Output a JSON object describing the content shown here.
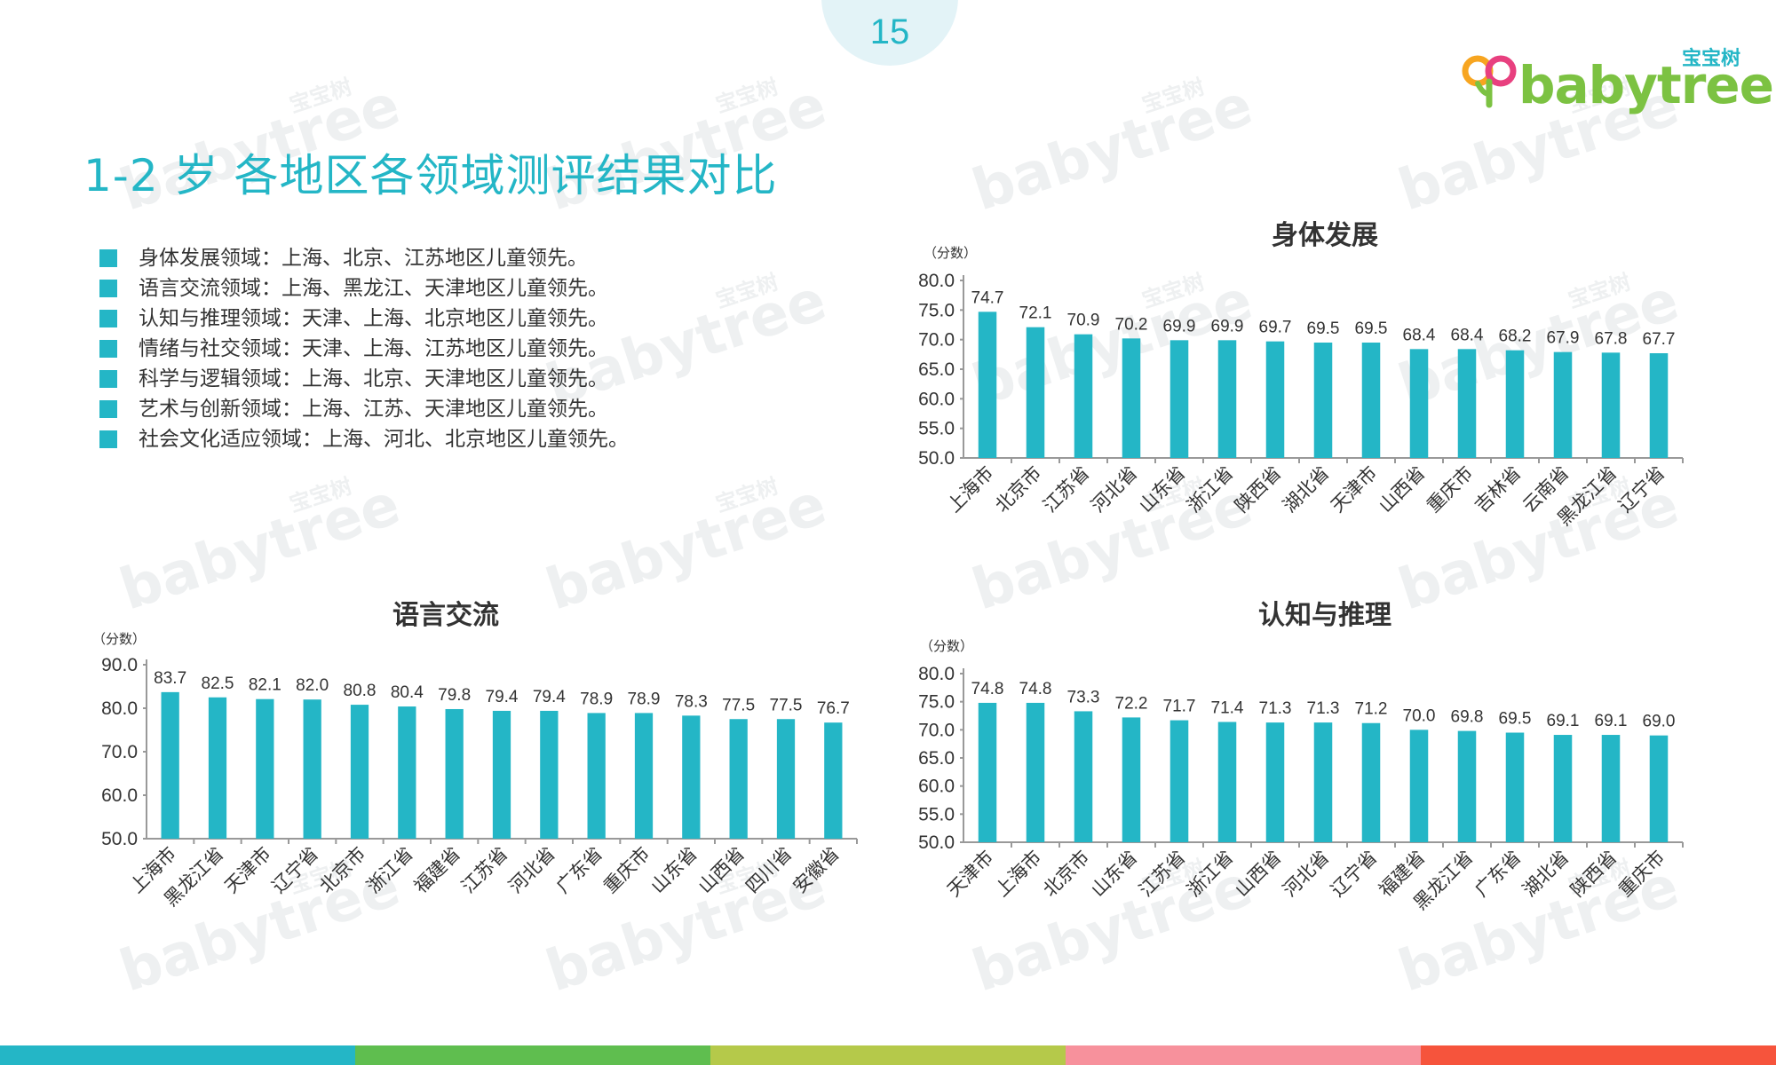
{
  "page_number": "15",
  "logo": {
    "cn": "宝宝树",
    "en": "babytree"
  },
  "watermark": {
    "en": "babytree",
    "cn": "宝宝树"
  },
  "title": "1-2 岁 各地区各领域测评结果对比",
  "summary": [
    "身体发展领域：上海、北京、江苏地区儿童领先。",
    "语言交流领域：上海、黑龙江、天津地区儿童领先。",
    "认知与推理领域：天津、上海、北京地区儿童领先。",
    "情绪与社交领域：天津、上海、江苏地区儿童领先。",
    "科学与逻辑领域：上海、北京、天津地区儿童领先。",
    "艺术与创新领域：上海、江苏、天津地区儿童领先。",
    "社会文化适应领域：上海、河北、北京地区儿童领先。"
  ],
  "colors": {
    "accent": "#24b6c6",
    "footer": [
      "#24b6c6",
      "#5fbe4f",
      "#b5c94a",
      "#f7919c",
      "#f6543c"
    ]
  },
  "chart_data": [
    {
      "id": "physical",
      "type": "bar",
      "title": "身体发展",
      "ylabel": "（分数）",
      "ylim": [
        50,
        80
      ],
      "yticks": [
        "80.0",
        "75.0",
        "70.0",
        "65.0",
        "60.0",
        "55.0",
        "50.0"
      ],
      "categories": [
        "上海市",
        "北京市",
        "江苏省",
        "河北省",
        "山东省",
        "浙江省",
        "陕西省",
        "湖北省",
        "天津市",
        "山西省",
        "重庆市",
        "吉林省",
        "云南省",
        "黑龙江省",
        "辽宁省"
      ],
      "values": [
        74.7,
        72.1,
        70.9,
        70.2,
        69.9,
        69.9,
        69.7,
        69.5,
        69.5,
        68.4,
        68.4,
        68.2,
        67.9,
        67.8,
        67.7
      ],
      "labels": [
        "74.7",
        "72.1",
        "70.9",
        "70.2",
        "69.9",
        "69.9",
        "69.7",
        "69.5",
        "69.5",
        "68.4",
        "68.4",
        "68.2",
        "67.9",
        "67.8",
        "67.7"
      ]
    },
    {
      "id": "language",
      "type": "bar",
      "title": "语言交流",
      "ylabel": "（分数）",
      "ylim": [
        50,
        90
      ],
      "yticks": [
        "90.0",
        "80.0",
        "70.0",
        "60.0",
        "50.0"
      ],
      "categories": [
        "上海市",
        "黑龙江省",
        "天津市",
        "辽宁省",
        "北京市",
        "浙江省",
        "福建省",
        "江苏省",
        "河北省",
        "广东省",
        "重庆市",
        "山东省",
        "山西省",
        "四川省",
        "安徽省"
      ],
      "values": [
        83.7,
        82.5,
        82.1,
        82.0,
        80.8,
        80.4,
        79.8,
        79.4,
        79.4,
        78.9,
        78.9,
        78.3,
        77.5,
        77.5,
        76.7
      ],
      "labels": [
        "83.7",
        "82.5",
        "82.1",
        "82.0",
        "80.8",
        "80.4",
        "79.8",
        "79.4",
        "79.4",
        "78.9",
        "78.9",
        "78.3",
        "77.5",
        "77.5",
        "76.7"
      ]
    },
    {
      "id": "cognition",
      "type": "bar",
      "title": "认知与推理",
      "ylabel": "（分数）",
      "ylim": [
        50,
        80
      ],
      "yticks": [
        "80.0",
        "75.0",
        "70.0",
        "65.0",
        "60.0",
        "55.0",
        "50.0"
      ],
      "categories": [
        "天津市",
        "上海市",
        "北京市",
        "山东省",
        "江苏省",
        "浙江省",
        "山西省",
        "河北省",
        "辽宁省",
        "福建省",
        "黑龙江省",
        "广东省",
        "湖北省",
        "陕西省",
        "重庆市"
      ],
      "values": [
        74.8,
        74.8,
        73.3,
        72.2,
        71.7,
        71.4,
        71.3,
        71.3,
        71.2,
        70.0,
        69.8,
        69.5,
        69.1,
        69.1,
        69.0
      ],
      "labels": [
        "74.8",
        "74.8",
        "73.3",
        "72.2",
        "71.7",
        "71.4",
        "71.3",
        "71.3",
        "71.2",
        "70.0",
        "69.8",
        "69.5",
        "69.1",
        "69.1",
        "69.0"
      ]
    }
  ]
}
